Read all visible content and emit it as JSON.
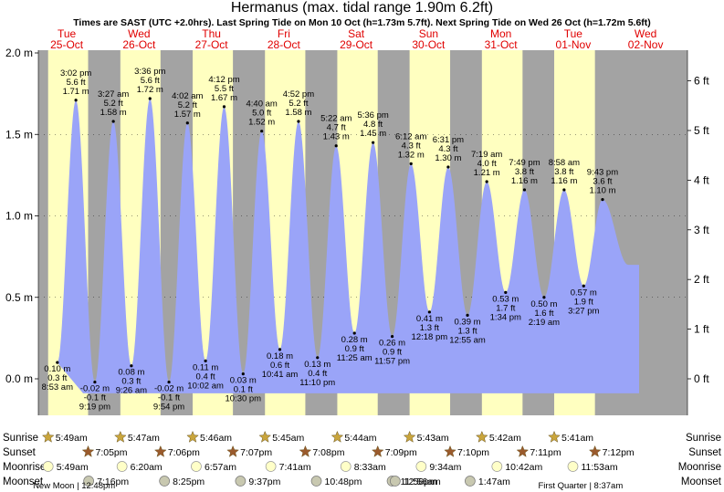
{
  "title": "Hermanus (max. tidal range 1.90m 6.2ft)",
  "subtitle": "Times are SAST (UTC +2.0hrs). Last Spring Tide on Mon 10 Oct (h=1.73m 5.7ft). Next Spring Tide on Wed 26 Oct (h=1.72m 5.6ft)",
  "colors": {
    "water": "#9aa4f8",
    "day": "#ffffc0",
    "night": "#a3a3a3",
    "date": "#e00000"
  },
  "chart_data": {
    "type": "area",
    "y_left_unit": "m",
    "y_right_unit": "ft",
    "ylim_m": [
      -0.15,
      2.0
    ],
    "y_ticks_m": [
      "2.0 m",
      "1.5 m",
      "1.0 m",
      "0.5 m",
      "0.0 m"
    ],
    "y_ticks_ft": [
      "6 ft",
      "5 ft",
      "4 ft",
      "3 ft",
      "2 ft",
      "1 ft",
      "0 ft"
    ],
    "days": [
      {
        "dow": "Tue",
        "date": "25-Oct",
        "sunrise": "5:49am",
        "sunset": "7:05pm",
        "moonrise": "5:49am",
        "moonset": "7:16pm"
      },
      {
        "dow": "Wed",
        "date": "26-Oct",
        "sunrise": "5:47am",
        "sunset": "7:06pm",
        "moonrise": "6:20am",
        "moonset": "8:25pm"
      },
      {
        "dow": "Thu",
        "date": "27-Oct",
        "sunrise": "5:46am",
        "sunset": "7:07pm",
        "moonrise": "6:57am",
        "moonset": "9:37pm"
      },
      {
        "dow": "Fri",
        "date": "28-Oct",
        "sunrise": "5:45am",
        "sunset": "7:08pm",
        "moonrise": "7:41am",
        "moonset": "10:48pm"
      },
      {
        "dow": "Sat",
        "date": "29-Oct",
        "sunrise": "5:44am",
        "sunset": "7:09pm",
        "moonrise": "8:33am",
        "moonset": "11:56pm"
      },
      {
        "dow": "Sun",
        "date": "30-Oct",
        "sunrise": "5:43am",
        "sunset": "7:10pm",
        "moonrise": "9:34am",
        "moonset": "12:56am"
      },
      {
        "dow": "Mon",
        "date": "31-Oct",
        "sunrise": "5:42am",
        "sunset": "7:11pm",
        "moonrise": "10:42am",
        "moonset": "1:47am"
      },
      {
        "dow": "Tue",
        "date": "01-Nov",
        "sunrise": "5:41am",
        "sunset": "7:12pm",
        "moonrise": "11:53am",
        "moonset": ""
      },
      {
        "dow": "Wed",
        "date": "02-Nov",
        "sunrise": "",
        "sunset": "",
        "moonrise": "",
        "moonset": ""
      }
    ],
    "tides": [
      {
        "time": "8:53 am",
        "ft": "0.3 ft",
        "m": "0.10 m",
        "h": 0.1,
        "d": 0,
        "hr": 8.88,
        "type": "low"
      },
      {
        "time": "3:02 pm",
        "ft": "5.6 ft",
        "m": "1.71 m",
        "h": 1.71,
        "d": 0,
        "hr": 15.03,
        "type": "high"
      },
      {
        "time": "9:19 pm",
        "ft": "-0.1 ft",
        "m": "-0.02 m",
        "h": -0.02,
        "d": 0,
        "hr": 21.32,
        "type": "low"
      },
      {
        "time": "3:27 am",
        "ft": "5.2 ft",
        "m": "1.58 m",
        "h": 1.58,
        "d": 1,
        "hr": 3.45,
        "type": "high"
      },
      {
        "time": "9:26 am",
        "ft": "0.3 ft",
        "m": "0.08 m",
        "h": 0.08,
        "d": 1,
        "hr": 9.43,
        "type": "low"
      },
      {
        "time": "3:36 pm",
        "ft": "5.6 ft",
        "m": "1.72 m",
        "h": 1.72,
        "d": 1,
        "hr": 15.6,
        "type": "high"
      },
      {
        "time": "9:54 pm",
        "ft": "-0.1 ft",
        "m": "-0.02 m",
        "h": -0.02,
        "d": 1,
        "hr": 21.9,
        "type": "low"
      },
      {
        "time": "4:02 am",
        "ft": "5.2 ft",
        "m": "1.57 m",
        "h": 1.57,
        "d": 2,
        "hr": 4.03,
        "type": "high"
      },
      {
        "time": "10:02 am",
        "ft": "0.4 ft",
        "m": "0.11 m",
        "h": 0.11,
        "d": 2,
        "hr": 10.03,
        "type": "low"
      },
      {
        "time": "4:12 pm",
        "ft": "5.5 ft",
        "m": "1.67 m",
        "h": 1.67,
        "d": 2,
        "hr": 16.2,
        "type": "high"
      },
      {
        "time": "10:30 pm",
        "ft": "0.1 ft",
        "m": "0.03 m",
        "h": 0.03,
        "d": 2,
        "hr": 22.5,
        "type": "low"
      },
      {
        "time": "4:40 am",
        "ft": "5.0 ft",
        "m": "1.52 m",
        "h": 1.52,
        "d": 3,
        "hr": 4.67,
        "type": "high"
      },
      {
        "time": "10:41 am",
        "ft": "0.6 ft",
        "m": "0.18 m",
        "h": 0.18,
        "d": 3,
        "hr": 10.68,
        "type": "low"
      },
      {
        "time": "4:52 pm",
        "ft": "5.2 ft",
        "m": "1.58 m",
        "h": 1.58,
        "d": 3,
        "hr": 16.87,
        "type": "high"
      },
      {
        "time": "11:10 pm",
        "ft": "0.4 ft",
        "m": "0.13 m",
        "h": 0.13,
        "d": 3,
        "hr": 23.17,
        "type": "low"
      },
      {
        "time": "5:22 am",
        "ft": "4.7 ft",
        "m": "1.43 m",
        "h": 1.43,
        "d": 4,
        "hr": 5.37,
        "type": "high"
      },
      {
        "time": "11:25 am",
        "ft": "0.9 ft",
        "m": "0.28 m",
        "h": 0.28,
        "d": 4,
        "hr": 11.42,
        "type": "low"
      },
      {
        "time": "5:36 pm",
        "ft": "4.8 ft",
        "m": "1.45 m",
        "h": 1.45,
        "d": 4,
        "hr": 17.6,
        "type": "high"
      },
      {
        "time": "11:57 pm",
        "ft": "0.9 ft",
        "m": "0.26 m",
        "h": 0.26,
        "d": 4,
        "hr": 23.95,
        "type": "low"
      },
      {
        "time": "6:12 am",
        "ft": "4.3 ft",
        "m": "1.32 m",
        "h": 1.32,
        "d": 5,
        "hr": 6.2,
        "type": "high"
      },
      {
        "time": "12:18 pm",
        "ft": "1.3 ft",
        "m": "0.41 m",
        "h": 0.41,
        "d": 5,
        "hr": 12.3,
        "type": "low"
      },
      {
        "time": "6:31 pm",
        "ft": "4.3 ft",
        "m": "1.30 m",
        "h": 1.3,
        "d": 5,
        "hr": 18.52,
        "type": "high"
      },
      {
        "time": "12:55 am",
        "ft": "1.3 ft",
        "m": "0.39 m",
        "h": 0.39,
        "d": 6,
        "hr": 0.92,
        "type": "low"
      },
      {
        "time": "7:19 am",
        "ft": "4.0 ft",
        "m": "1.21 m",
        "h": 1.21,
        "d": 6,
        "hr": 7.32,
        "type": "high"
      },
      {
        "time": "1:34 pm",
        "ft": "1.7 ft",
        "m": "0.53 m",
        "h": 0.53,
        "d": 6,
        "hr": 13.57,
        "type": "low"
      },
      {
        "time": "7:49 pm",
        "ft": "3.8 ft",
        "m": "1.16 m",
        "h": 1.16,
        "d": 6,
        "hr": 19.82,
        "type": "high"
      },
      {
        "time": "2:19 am",
        "ft": "1.6 ft",
        "m": "0.50 m",
        "h": 0.5,
        "d": 7,
        "hr": 2.32,
        "type": "low"
      },
      {
        "time": "8:58 am",
        "ft": "3.8 ft",
        "m": "1.16 m",
        "h": 1.16,
        "d": 7,
        "hr": 8.97,
        "type": "high"
      },
      {
        "time": "3:27 pm",
        "ft": "1.9 ft",
        "m": "0.57 m",
        "h": 0.57,
        "d": 7,
        "hr": 15.45,
        "type": "low"
      },
      {
        "time": "9:43 pm",
        "ft": "3.6 ft",
        "m": "1.10 m",
        "h": 1.1,
        "d": 7,
        "hr": 21.72,
        "type": "high"
      }
    ],
    "rows": [
      "Sunrise",
      "Sunset",
      "Moonrise",
      "Moonset"
    ],
    "moon_events": [
      {
        "label": "New Moon",
        "time": "12:48pm",
        "d": 0
      },
      {
        "label": "First Quarter",
        "time": "8:37am",
        "d": 7
      }
    ]
  }
}
